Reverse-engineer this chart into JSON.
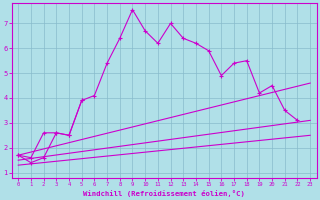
{
  "xlabel": "Windchill (Refroidissement éolien,°C)",
  "background_color": "#b0e0e8",
  "grid_color": "#88bbcc",
  "line_color": "#cc00cc",
  "xlim": [
    -0.5,
    23.5
  ],
  "ylim": [
    0.8,
    7.8
  ],
  "xticks": [
    0,
    1,
    2,
    3,
    4,
    5,
    6,
    7,
    8,
    9,
    10,
    11,
    12,
    13,
    14,
    15,
    16,
    17,
    18,
    19,
    20,
    21,
    22,
    23
  ],
  "yticks": [
    1,
    2,
    3,
    4,
    5,
    6,
    7
  ],
  "series1_x": [
    0,
    1,
    2,
    3,
    4,
    5,
    6,
    7,
    8,
    9,
    10,
    11,
    12,
    13,
    14,
    15,
    16,
    17,
    18,
    19,
    20,
    21,
    22
  ],
  "series1_y": [
    1.7,
    1.4,
    1.6,
    2.6,
    2.5,
    3.9,
    4.1,
    5.4,
    6.4,
    7.55,
    6.7,
    6.2,
    7.0,
    6.4,
    6.2,
    5.9,
    4.9,
    5.4,
    5.5,
    4.2,
    4.5,
    3.5,
    3.1
  ],
  "series2_x": [
    0,
    1,
    2,
    3,
    4,
    5
  ],
  "series2_y": [
    1.7,
    1.6,
    2.6,
    2.6,
    2.5,
    3.9
  ],
  "trend1_x": [
    0,
    23
  ],
  "trend1_y": [
    1.7,
    4.6
  ],
  "trend2_x": [
    0,
    23
  ],
  "trend2_y": [
    1.5,
    3.1
  ],
  "trend3_x": [
    0,
    23
  ],
  "trend3_y": [
    1.3,
    2.5
  ]
}
